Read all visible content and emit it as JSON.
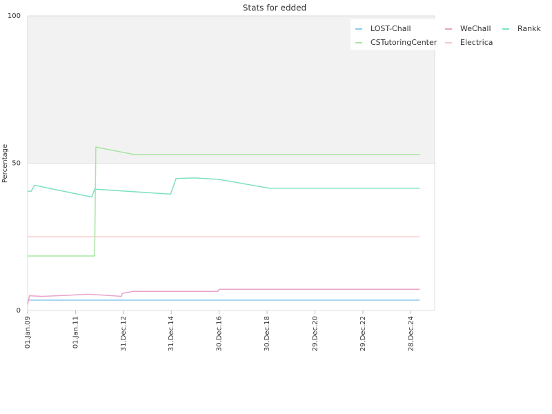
{
  "chart_data": {
    "type": "line",
    "title": "Stats for edded",
    "y_label": "Percentage",
    "xlim": [
      2009.0,
      2026.0
    ],
    "xticks": [
      {
        "value": 2009.0,
        "label": "01.Jan.09"
      },
      {
        "value": 2011.0,
        "label": "01.Jan.11"
      },
      {
        "value": 2013.0,
        "label": "31.Dec.12"
      },
      {
        "value": 2015.0,
        "label": "31.Dec.14"
      },
      {
        "value": 2017.0,
        "label": "30.Dec.16"
      },
      {
        "value": 2019.0,
        "label": "30.Dec.18"
      },
      {
        "value": 2021.0,
        "label": "29.Dec.20"
      },
      {
        "value": 2023.0,
        "label": "29.Dec.22"
      },
      {
        "value": 2025.0,
        "label": "28.Dec.24"
      }
    ],
    "ylim": [
      0,
      100
    ],
    "yticks": [
      0,
      50,
      100
    ],
    "grid": true,
    "series": [
      {
        "name": "LOST-Chall",
        "color": "#8ec8f0",
        "x": [
          2009.06,
          2025.37
        ],
        "values": [
          3.5,
          3.5
        ]
      },
      {
        "name": "WeChall",
        "color": "#e9a3c9",
        "x": [
          2009.0,
          2009.08,
          2009.6,
          2010.5,
          2011.5,
          2012.0,
          2012.92,
          2012.95,
          2013.41,
          2016.95,
          2017.0,
          2025.37
        ],
        "values": [
          2,
          5,
          4.8,
          5.1,
          5.5,
          5.3,
          4.8,
          5.8,
          6.5,
          6.5,
          7.2,
          7.2
        ]
      },
      {
        "name": "Rankk",
        "color": "#7fe0c4",
        "x": [
          2009.0,
          2009.15,
          2009.29,
          2011.68,
          2011.8,
          2014.97,
          2015.2,
          2016.0,
          2017.0,
          2019.09,
          2025.37
        ],
        "values": [
          40.5,
          40.5,
          42.5,
          38.5,
          41.2,
          39.5,
          44.8,
          45,
          44.5,
          41.5,
          41.5
        ]
      },
      {
        "name": "CSTutoringCenter",
        "color": "#a6e6a0",
        "x": [
          2009.0,
          2011.8,
          2011.85,
          2013.41,
          2025.37
        ],
        "values": [
          18.5,
          18.5,
          55.5,
          53,
          53
        ]
      },
      {
        "name": "Electrica",
        "color": "#f7c6c6",
        "x": [
          2009.0,
          2025.37
        ],
        "values": [
          25,
          25
        ]
      }
    ]
  }
}
